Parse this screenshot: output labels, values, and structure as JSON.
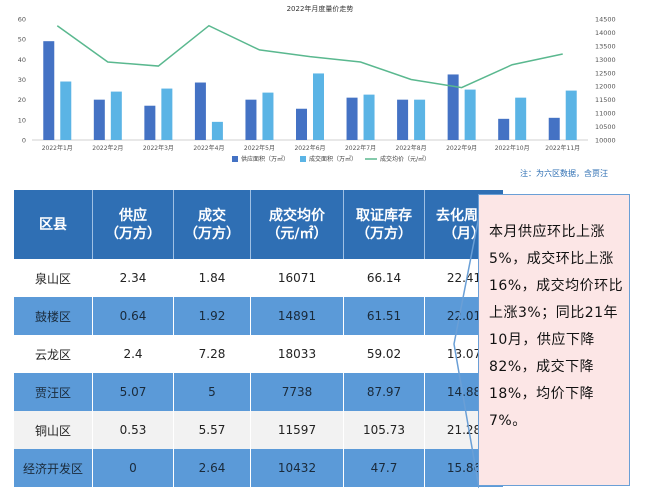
{
  "chart_data": {
    "type": "bar",
    "title": "2022年月度量价走势",
    "categories": [
      "2022年1月",
      "2022年2月",
      "2022年3月",
      "2022年4月",
      "2022年5月",
      "2022年6月",
      "2022年7月",
      "2022年8月",
      "2022年9月",
      "2022年10月",
      "2022年11月"
    ],
    "series": [
      {
        "name": "供应面积（万㎡）",
        "type": "bar",
        "axis": "left",
        "color": "#4472c4",
        "values": [
          49,
          20,
          17,
          28.5,
          20,
          15.5,
          21,
          20,
          32.5,
          10.5,
          11
        ]
      },
      {
        "name": "成交面积（万㎡）",
        "type": "bar",
        "axis": "left",
        "color": "#5bb4e5",
        "values": [
          29,
          24,
          25.5,
          9,
          23.5,
          33,
          22.5,
          20,
          25,
          21,
          24.5
        ]
      },
      {
        "name": "成交均价（元/㎡）",
        "type": "line",
        "axis": "right",
        "color": "#5ab88f",
        "values": [
          14250,
          12900,
          12750,
          14250,
          13350,
          13100,
          12900,
          12250,
          11950,
          12800,
          13200
        ]
      }
    ],
    "yleft": {
      "ylim": [
        0,
        60
      ],
      "ticks": [
        0,
        10,
        20,
        30,
        40,
        50,
        60
      ]
    },
    "yright": {
      "ylim": [
        10000,
        14500
      ],
      "ticks": [
        10000,
        10500,
        11000,
        11500,
        12000,
        12500,
        13000,
        13500,
        14000,
        14500
      ]
    },
    "grid": false,
    "legend": "bottom"
  },
  "note": "注：为六区数据，含贾汪",
  "table": {
    "headers": [
      "区县",
      "供应\n（万方）",
      "成交\n（万方）",
      "成交均价\n（元/㎡）",
      "取证库存\n（万方）",
      "去化周期\n（月）"
    ],
    "rows": [
      [
        "泉山区",
        "2.34",
        "1.84",
        "16071",
        "66.14",
        "22.41"
      ],
      [
        "鼓楼区",
        "0.64",
        "1.92",
        "14891",
        "61.51",
        "22.01"
      ],
      [
        "云龙区",
        "2.4",
        "7.28",
        "18033",
        "59.02",
        "13.07"
      ],
      [
        "贾汪区",
        "5.07",
        "5",
        "7738",
        "87.97",
        "14.88"
      ],
      [
        "铜山区",
        "0.53",
        "5.57",
        "11597",
        "105.73",
        "21.28"
      ],
      [
        "经济开发区",
        "0",
        "2.64",
        "10432",
        "47.7",
        "15.86"
      ]
    ]
  },
  "callout": {
    "text": "本月供应环比上涨5%，成交环比上涨16%，成交均价环比上涨3%；同比21年10月，供应下降82%，成交下降18%，均价下降7%。"
  }
}
